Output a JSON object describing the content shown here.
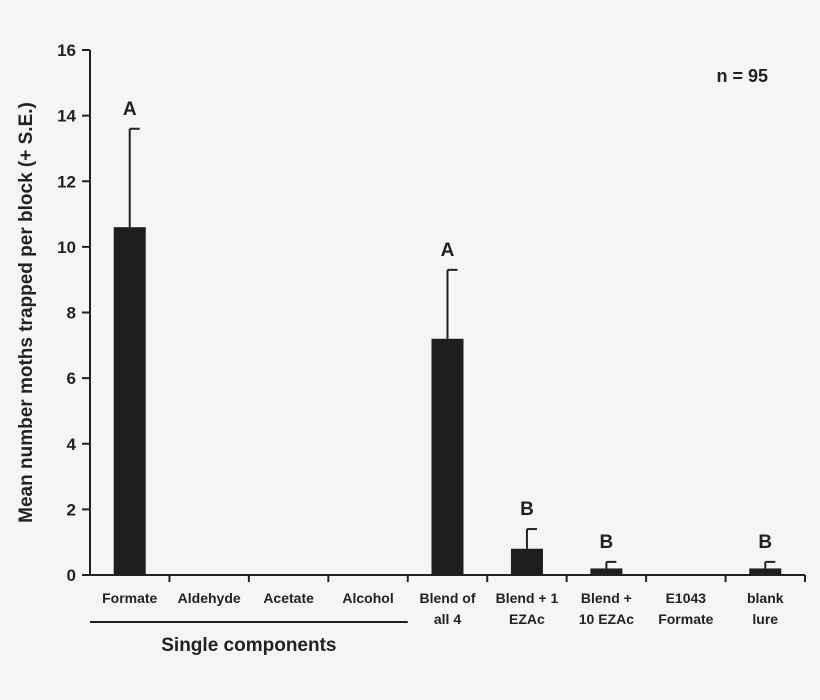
{
  "chart_data": {
    "type": "bar",
    "ylabel": "Mean number moths trapped per block (+ S.E.)",
    "ylim": [
      0,
      16
    ],
    "yticks": [
      "0",
      "2",
      "4",
      "6",
      "8",
      "10",
      "12",
      "14",
      "16"
    ],
    "annotation": "n = 95",
    "categories": [
      [
        "Formate"
      ],
      [
        "Aldehyde"
      ],
      [
        "Acetate"
      ],
      [
        "Alcohol"
      ],
      [
        "Blend of",
        "all 4"
      ],
      [
        "Blend + 1",
        "EZAc"
      ],
      [
        "Blend +",
        "10 EZAc"
      ],
      [
        "E1043",
        "Formate"
      ],
      [
        "blank",
        "lure"
      ]
    ],
    "values": [
      10.6,
      0,
      0,
      0,
      7.2,
      0.8,
      0.2,
      0,
      0.2
    ],
    "errors": [
      3.0,
      0,
      0,
      0,
      2.1,
      0.6,
      0.2,
      0,
      0.2
    ],
    "significance": [
      "A",
      "",
      "",
      "",
      "A",
      "B",
      "B",
      "",
      "B"
    ],
    "group_label": "Single components",
    "bar_color": "#1e1e1e",
    "background_color": "#f5f5f5"
  }
}
